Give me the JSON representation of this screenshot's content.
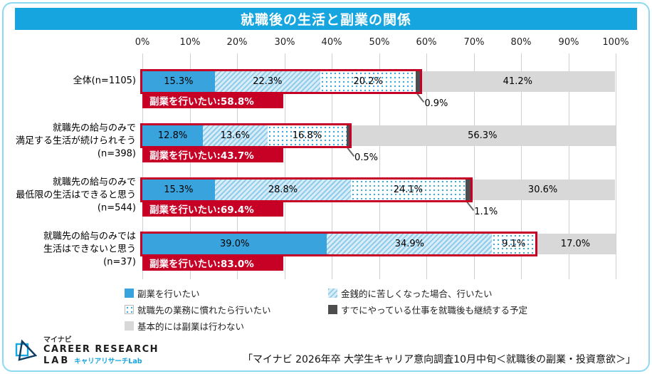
{
  "title": "就職後の生活と副業の関係",
  "source_note": "「マイナビ 2026年卒 大学生キャリア意向調査10月中旬＜就職後の副業・投資意欲＞」",
  "logo": {
    "brand": "マイナビ",
    "line1": "CAREER RESEARCH",
    "line2": "LAB",
    "sub": "キャリアリサーチLab"
  },
  "colors": {
    "title_bar": "#16A5DE",
    "accent_red": "#C70025",
    "bar_blue": "#38A3DC",
    "hatch_blue": "#8FCBEA",
    "dot_blue": "#3FA9DC",
    "dark_gray": "#4D4D4D",
    "light_gray": "#D8D8D8",
    "frame_border": "#8ED9F2"
  },
  "chart_data": {
    "type": "bar",
    "stacked": true,
    "orientation": "horizontal",
    "x_ticks": [
      "0%",
      "10%",
      "20%",
      "30%",
      "40%",
      "50%",
      "60%",
      "70%",
      "80%",
      "90%",
      "100%"
    ],
    "x_range": [
      0,
      100
    ],
    "grid": true,
    "legend_position": "bottom",
    "series": [
      {
        "name": "副業を行いたい",
        "style": "fill-blue",
        "values": [
          15.3,
          12.8,
          15.3,
          39.0
        ]
      },
      {
        "name": "金銭的に苦しくなった場合、行いたい",
        "style": "fill-hatch",
        "values": [
          22.3,
          13.6,
          28.8,
          34.9
        ]
      },
      {
        "name": "就職先の業務に慣れたら行いたい",
        "style": "fill-dot",
        "values": [
          20.2,
          16.8,
          24.1,
          9.1
        ]
      },
      {
        "name": "すでにやっている仕事を就職後も継続する予定",
        "style": "fill-dark",
        "values": [
          0.9,
          0.5,
          1.1,
          0
        ]
      },
      {
        "name": "基本的には副業は行わない",
        "style": "fill-gray",
        "values": [
          41.2,
          56.3,
          30.6,
          17.0
        ]
      }
    ],
    "categories": [
      {
        "label_lines": [
          "全体(n=1105)"
        ],
        "total_label": "副業を行いたい:58.8%"
      },
      {
        "label_lines": [
          "就職先の給与のみで",
          "満足する生活が続けられそう",
          "(n=398)"
        ],
        "total_label": "副業を行いたい:43.7%"
      },
      {
        "label_lines": [
          "就職先の給与のみで",
          "最低限の生活はできると思う",
          "(n=544)"
        ],
        "total_label": "副業を行いたい:69.4%"
      },
      {
        "label_lines": [
          "就職先の給与のみでは",
          "生活はできないと思う",
          "(n=37)"
        ],
        "total_label": "副業を行いたい:83.0%"
      }
    ]
  }
}
